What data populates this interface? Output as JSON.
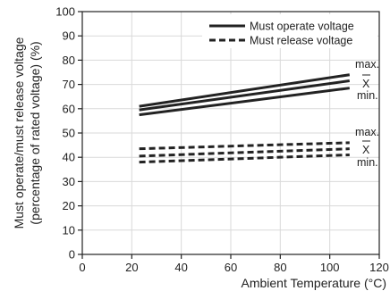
{
  "chart_data": {
    "type": "line",
    "xlabel": "Ambient Temperature (°C)",
    "ylabel_line1": "Must operate/must release voltage",
    "ylabel_line2": "(percentage of rated voltage) (%)",
    "xlim": [
      0,
      120
    ],
    "ylim": [
      0,
      100
    ],
    "xticks": [
      0,
      20,
      40,
      60,
      80,
      100,
      120
    ],
    "yticks": [
      0,
      10,
      20,
      30,
      40,
      50,
      60,
      70,
      80,
      90,
      100
    ],
    "grid": true,
    "legend_position": "top-right",
    "legend": [
      {
        "label": "Must operate voltage",
        "style": "solid"
      },
      {
        "label": "Must release voltage",
        "style": "dashed"
      }
    ],
    "series": [
      {
        "group": "operate",
        "stat": "max.",
        "style": "solid",
        "x": [
          23,
          108
        ],
        "y": [
          61,
          74
        ]
      },
      {
        "group": "operate",
        "stat": "X̄",
        "style": "solid",
        "x": [
          23,
          108
        ],
        "y": [
          59.5,
          71.5
        ]
      },
      {
        "group": "operate",
        "stat": "min.",
        "style": "solid",
        "x": [
          23,
          108
        ],
        "y": [
          57.5,
          68.5
        ]
      },
      {
        "group": "release",
        "stat": "max.",
        "style": "dashed",
        "x": [
          23,
          108
        ],
        "y": [
          43.5,
          46
        ]
      },
      {
        "group": "release",
        "stat": "X̄",
        "style": "dashed",
        "x": [
          23,
          108
        ],
        "y": [
          40.5,
          43.5
        ]
      },
      {
        "group": "release",
        "stat": "min.",
        "style": "dashed",
        "x": [
          23,
          108
        ],
        "y": [
          38,
          41
        ]
      }
    ],
    "annotations": {
      "operate": [
        "max.",
        "X",
        "min."
      ],
      "release": [
        "max.",
        "X",
        "min."
      ]
    }
  },
  "colors": {
    "line": "#222222",
    "grid": "#d9d9d9",
    "axis": "#222222"
  }
}
